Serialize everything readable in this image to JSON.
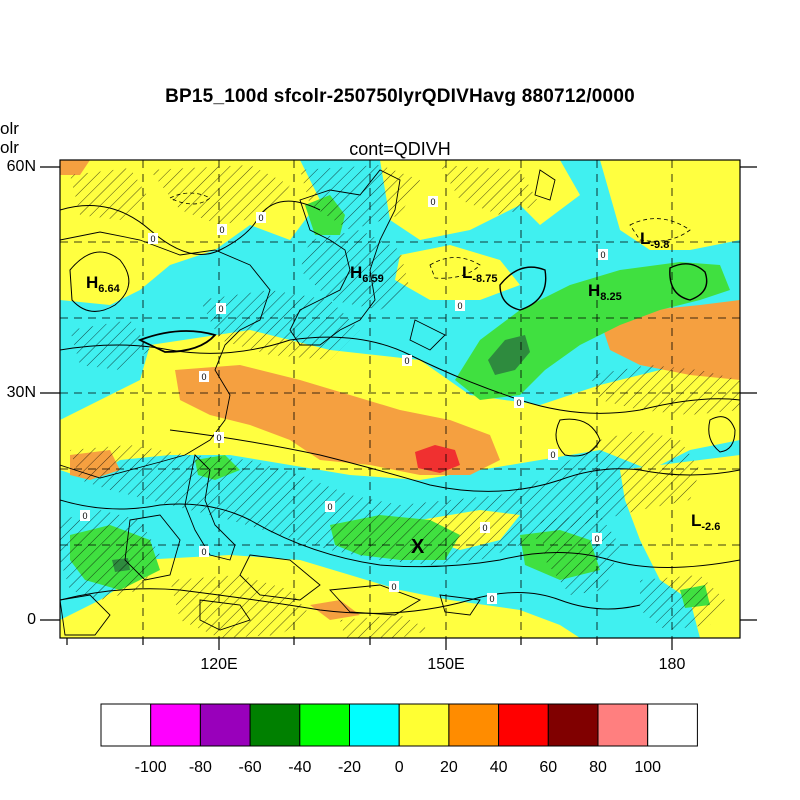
{
  "title": "BP15_100d sfcolr-250750lyrQDIVHavg  880712/0000",
  "subtitle": "cont=QDIVH",
  "left_fragments": [
    "olr",
    "olr"
  ],
  "axes": {
    "lat_labels": [
      "60N",
      "30N",
      "0"
    ],
    "lon_labels": [
      "120E",
      "150E",
      "180"
    ]
  },
  "markers": [
    {
      "type": "H",
      "value": "6.64"
    },
    {
      "type": "H",
      "value": "6.59"
    },
    {
      "type": "L",
      "value": "-8.75"
    },
    {
      "type": "L",
      "value": "-9.8"
    },
    {
      "type": "H",
      "value": "8.25"
    },
    {
      "type": "L",
      "value": "-2.6"
    }
  ],
  "x_marker": "X",
  "contour_label": "0",
  "colorbar": {
    "tick_labels": [
      "-100",
      "-80",
      "-60",
      "-40",
      "-20",
      "0",
      "20",
      "40",
      "60",
      "80",
      "100"
    ],
    "colors": [
      "#ffffff",
      "#ff00ff",
      "#9900bb",
      "#008000",
      "#00ff00",
      "#00ffff",
      "#ffff33",
      "#ff8c00",
      "#ff0000",
      "#800000",
      "#ff7f7f",
      "#ffffff"
    ]
  },
  "map_colors": {
    "cyan": "#40f0f0",
    "yellow": "#ffff40",
    "orange": "#f5a040",
    "green": "#40e040",
    "dark_green": "#2e8b3e",
    "red": "#f03030"
  }
}
